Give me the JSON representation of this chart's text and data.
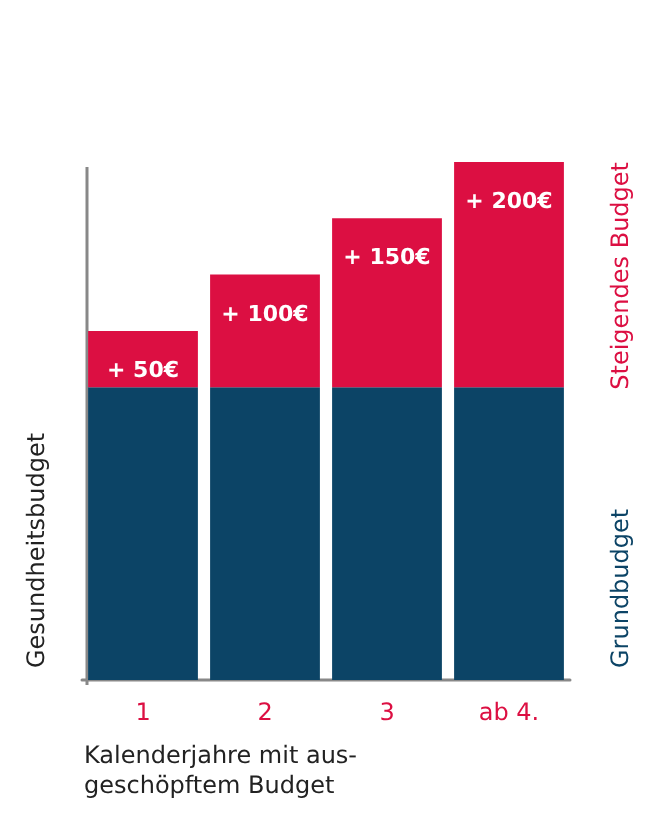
{
  "chart_data": {
    "type": "bar",
    "stacked": true,
    "tick_labels": "x",
    "ylim": [
      0,
      460
    ],
    "xlabel": "Kalenderjahre mit aus-\ngeschöpftem Budget",
    "ylabel": "Gesundheitsbudget",
    "categories": [
      "1",
      "2",
      "3",
      "ab 4."
    ],
    "legend": false,
    "series": [
      {
        "name": "Grundbudget",
        "color": "#0c4466",
        "values": [
          260,
          260,
          260,
          260
        ]
      },
      {
        "name": "Steigendes Budget",
        "color": "#dc0f42",
        "values": [
          50,
          100,
          150,
          200
        ],
        "value_labels": [
          "+ 50€",
          "+ 100€",
          "+ 150€",
          "+ 200€"
        ]
      }
    ]
  }
}
